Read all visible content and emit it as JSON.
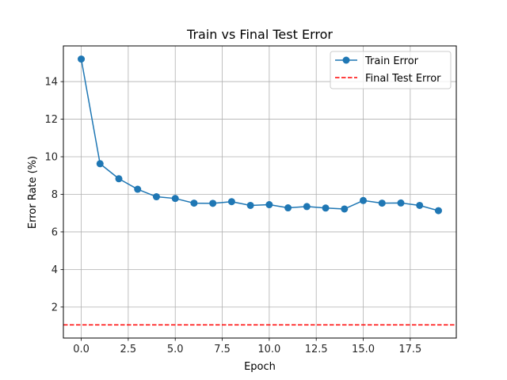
{
  "chart_data": {
    "type": "line",
    "title": "Train vs Final Test Error",
    "xlabel": "Epoch",
    "ylabel": "Error Rate (%)",
    "xlim": [
      -0.95,
      19.95
    ],
    "ylim": [
      0.35,
      15.9
    ],
    "xticks": [
      0.0,
      2.5,
      5.0,
      7.5,
      10.0,
      12.5,
      15.0,
      17.5
    ],
    "xtick_labels": [
      "0.0",
      "2.5",
      "5.0",
      "7.5",
      "10.0",
      "12.5",
      "15.0",
      "17.5"
    ],
    "yticks": [
      2,
      4,
      6,
      8,
      10,
      12,
      14
    ],
    "ytick_labels": [
      "2",
      "4",
      "6",
      "8",
      "10",
      "12",
      "14"
    ],
    "grid": true,
    "legend_position": "top-right",
    "series": [
      {
        "name": "Train Error",
        "style": "line-with-markers",
        "color": "#1f77b4",
        "x": [
          0,
          1,
          2,
          3,
          4,
          5,
          6,
          7,
          8,
          9,
          10,
          11,
          12,
          13,
          14,
          15,
          16,
          17,
          18,
          19
        ],
        "values": [
          15.2,
          9.63,
          8.83,
          8.27,
          7.87,
          7.78,
          7.53,
          7.52,
          7.61,
          7.41,
          7.45,
          7.28,
          7.35,
          7.27,
          7.22,
          7.67,
          7.53,
          7.54,
          7.41,
          7.13
        ]
      },
      {
        "name": "Final Test Error",
        "style": "horizontal-dashed",
        "color": "#ff0000",
        "value": 1.05
      }
    ]
  }
}
